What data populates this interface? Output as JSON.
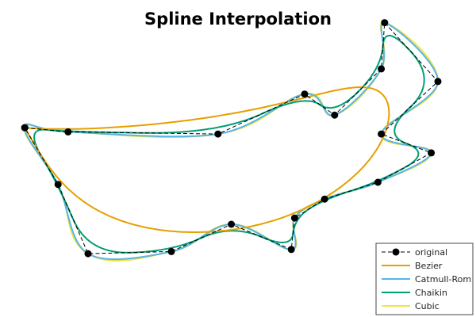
{
  "chart_data": {
    "type": "line",
    "title": "Spline Interpolation",
    "xlabel": "",
    "ylabel": "",
    "grid": false,
    "axes_visible": false,
    "legend": {
      "position": "bottom-right",
      "entries": [
        "original",
        "Bezier",
        "Catmull-Rom",
        "Chaikin",
        "Cubic"
      ]
    },
    "series": [
      {
        "name": "original",
        "style": "dashed line with filled circle markers",
        "color": "#000000",
        "points": [
          [
            -0.64,
            0.46
          ],
          [
            -0.51,
            0.44
          ],
          [
            -0.06,
            0.43
          ],
          [
            0.2,
            0.62
          ],
          [
            0.29,
            0.52
          ],
          [
            0.43,
            0.74
          ],
          [
            0.44,
            0.96
          ],
          [
            0.6,
            0.68
          ],
          [
            0.43,
            0.43
          ],
          [
            0.58,
            0.34
          ],
          [
            0.42,
            0.2
          ],
          [
            0.26,
            0.12
          ],
          [
            0.17,
            0.03
          ],
          [
            0.16,
            -0.12
          ],
          [
            -0.02,
            0.0
          ],
          [
            -0.2,
            -0.13
          ],
          [
            -0.45,
            -0.14
          ],
          [
            -0.54,
            0.19
          ],
          [
            -0.64,
            0.46
          ]
        ]
      },
      {
        "name": "Bezier",
        "color": "#e69f00"
      },
      {
        "name": "Catmull-Rom",
        "color": "#56b4e9"
      },
      {
        "name": "Chaikin",
        "color": "#009e73"
      },
      {
        "name": "Cubic",
        "color": "#f0e442"
      }
    ]
  }
}
